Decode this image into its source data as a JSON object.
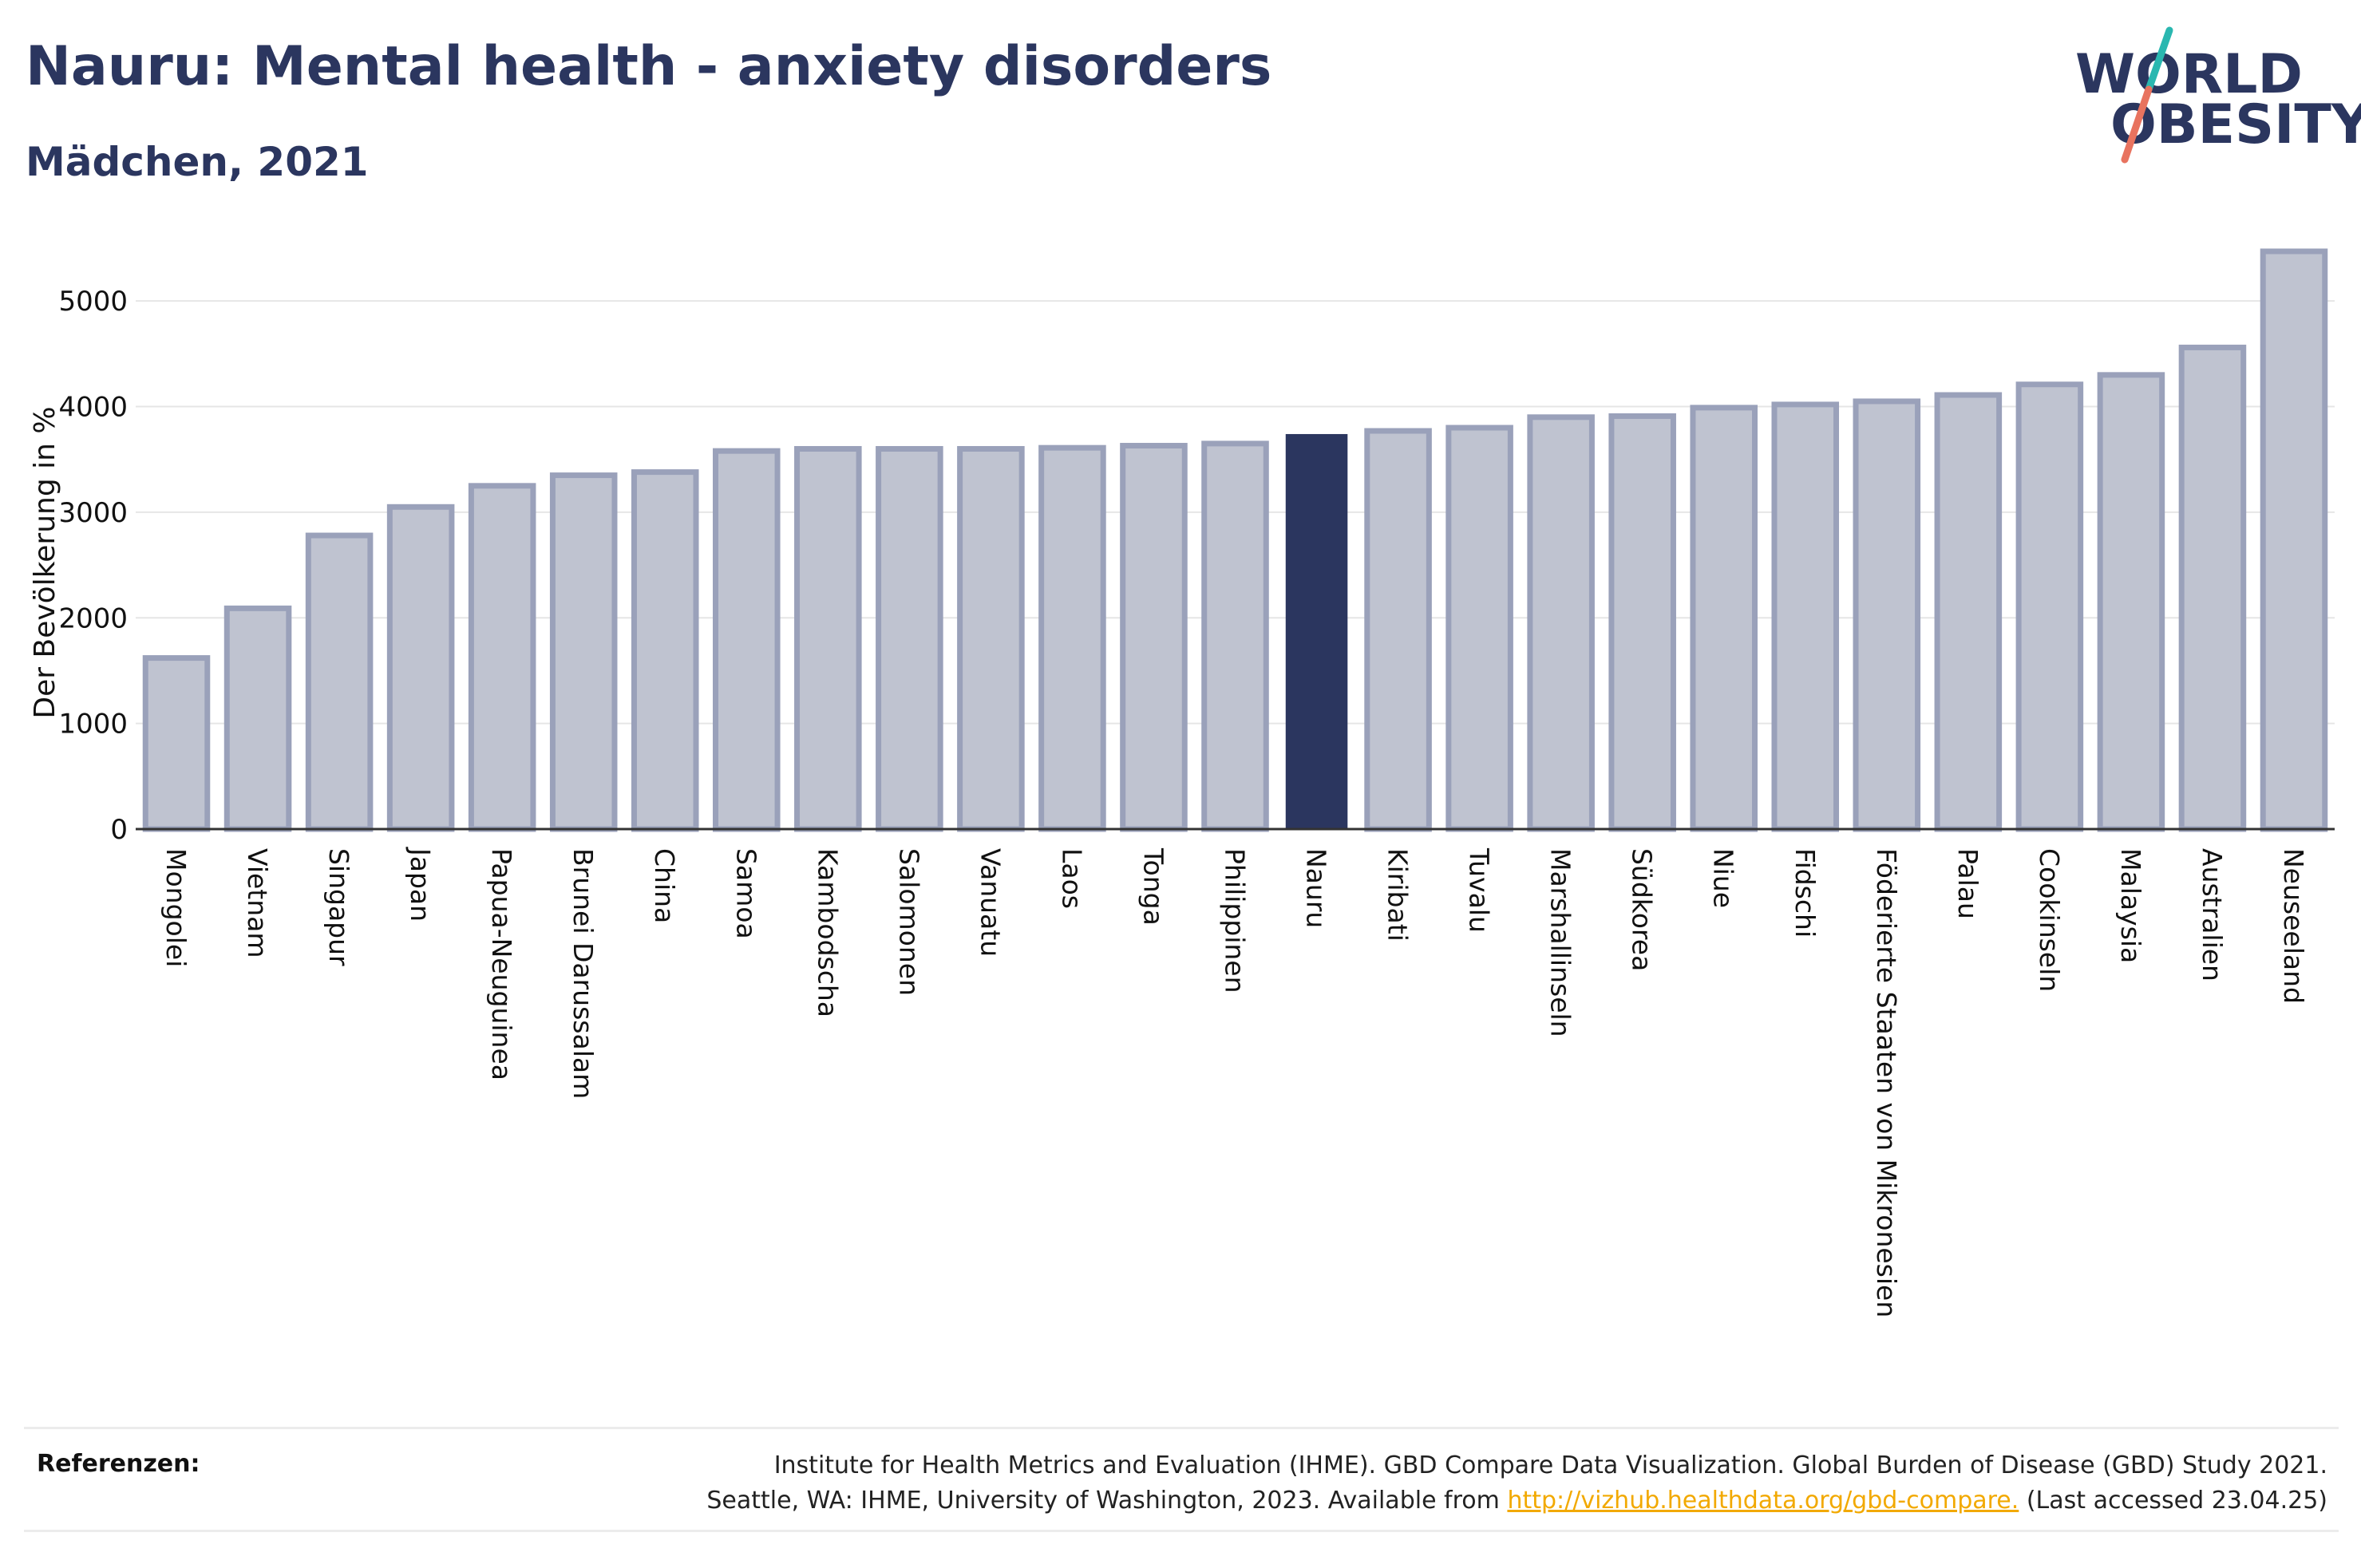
{
  "header": {
    "title": "Nauru: Mental health - anxiety disorders",
    "subtitle": "Mädchen, 2021"
  },
  "logo": {
    "line1": "WORLD",
    "line2": "OBESITY",
    "text_color": "#2b365f",
    "slash_top_color": "#2ab7b0",
    "slash_bottom_color": "#e8735f"
  },
  "colors": {
    "bar_default_fill": "#bfc3d0",
    "bar_default_stroke": "#9aa1ba",
    "bar_highlight": "#2b365f",
    "grid": "#e6e6e6",
    "axis": "#333333"
  },
  "chart_data": {
    "type": "bar",
    "title": "Nauru: Mental health - anxiety disorders",
    "subtitle": "Mädchen, 2021",
    "xlabel": "",
    "ylabel": "Der Bevölkerung in %",
    "ylim": [
      0,
      5500
    ],
    "yticks": [
      0,
      1000,
      2000,
      3000,
      4000,
      5000
    ],
    "grid": true,
    "highlight": "Nauru",
    "categories": [
      "Mongolei",
      "Vietnam",
      "Singapur",
      "Japan",
      "Papua-Neuguinea",
      "Brunei Darussalam",
      "China",
      "Samoa",
      "Kambodscha",
      "Salomonen",
      "Vanuatu",
      "Laos",
      "Tonga",
      "Philippinen",
      "Nauru",
      "Kiribati",
      "Tuvalu",
      "Marshallinseln",
      "Südkorea",
      "Niue",
      "Fidschi",
      "Föderierte Staaten von Mikronesien",
      "Palau",
      "Cookinseln",
      "Malaysia",
      "Australien",
      "Neuseeland"
    ],
    "values": [
      1620,
      2090,
      2780,
      3050,
      3250,
      3350,
      3380,
      3580,
      3600,
      3600,
      3600,
      3610,
      3630,
      3650,
      3740,
      3770,
      3800,
      3900,
      3910,
      3990,
      4020,
      4050,
      4110,
      4210,
      4300,
      4560,
      5470
    ]
  },
  "references": {
    "label": "Referenzen:",
    "line1": "Institute for Health Metrics and Evaluation (IHME). GBD Compare Data Visualization. Global Burden of Disease (GBD) Study 2021.",
    "line2_prefix": "Seattle, WA: IHME, University of Washington, 2023. Available from",
    "link": "http://vizhub.healthdata.org/gbd-compare.",
    "line2_suffix": "(Last accessed 23.04.25)"
  }
}
